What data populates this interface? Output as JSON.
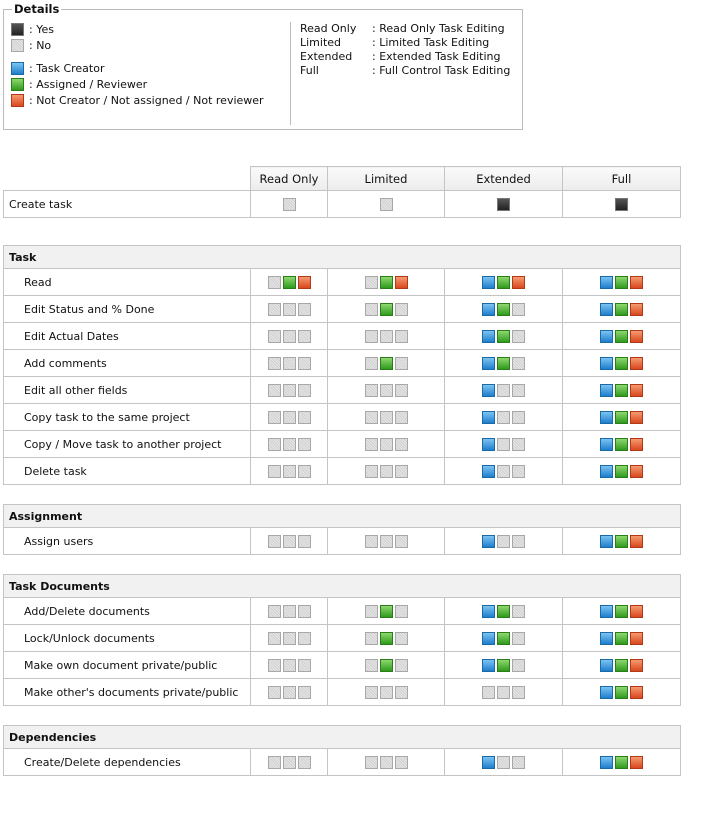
{
  "details": {
    "title": "Details",
    "yes": ": Yes",
    "no": ": No",
    "creator": ": Task Creator",
    "assigned": ": Assigned / Reviewer",
    "other": ": Not Creator / Not assigned / Not reviewer",
    "levels": [
      {
        "name": "Read Only",
        "desc": ": Read Only Task Editing"
      },
      {
        "name": "Limited",
        "desc": ": Limited Task Editing"
      },
      {
        "name": "Extended",
        "desc": ": Extended Task Editing"
      },
      {
        "name": "Full",
        "desc": ": Full Control Task Editing"
      }
    ]
  },
  "table": {
    "columns": [
      "Read Only",
      "Limited",
      "Extended",
      "Full"
    ],
    "create": {
      "label": "Create task",
      "cells": [
        false,
        false,
        true,
        true
      ]
    },
    "sections": [
      {
        "title": "Task",
        "rows": [
          {
            "label": "Read",
            "cells": [
              [
                false,
                true,
                true
              ],
              [
                false,
                true,
                true
              ],
              [
                true,
                true,
                true
              ],
              [
                true,
                true,
                true
              ]
            ]
          },
          {
            "label": "Edit Status and % Done",
            "cells": [
              [
                false,
                false,
                false
              ],
              [
                false,
                true,
                false
              ],
              [
                true,
                true,
                false
              ],
              [
                true,
                true,
                true
              ]
            ]
          },
          {
            "label": "Edit Actual Dates",
            "cells": [
              [
                false,
                false,
                false
              ],
              [
                false,
                false,
                false
              ],
              [
                true,
                true,
                false
              ],
              [
                true,
                true,
                true
              ]
            ]
          },
          {
            "label": "Add comments",
            "cells": [
              [
                false,
                false,
                false
              ],
              [
                false,
                true,
                false
              ],
              [
                true,
                true,
                false
              ],
              [
                true,
                true,
                true
              ]
            ]
          },
          {
            "label": "Edit all other fields",
            "cells": [
              [
                false,
                false,
                false
              ],
              [
                false,
                false,
                false
              ],
              [
                true,
                false,
                false
              ],
              [
                true,
                true,
                true
              ]
            ]
          },
          {
            "label": "Copy task to the same project",
            "cells": [
              [
                false,
                false,
                false
              ],
              [
                false,
                false,
                false
              ],
              [
                true,
                false,
                false
              ],
              [
                true,
                true,
                true
              ]
            ]
          },
          {
            "label": "Copy / Move task to another project",
            "cells": [
              [
                false,
                false,
                false
              ],
              [
                false,
                false,
                false
              ],
              [
                true,
                false,
                false
              ],
              [
                true,
                true,
                true
              ]
            ]
          },
          {
            "label": "Delete task",
            "cells": [
              [
                false,
                false,
                false
              ],
              [
                false,
                false,
                false
              ],
              [
                true,
                false,
                false
              ],
              [
                true,
                true,
                true
              ]
            ]
          }
        ]
      },
      {
        "title": "Assignment",
        "rows": [
          {
            "label": "Assign users",
            "cells": [
              [
                false,
                false,
                false
              ],
              [
                false,
                false,
                false
              ],
              [
                true,
                false,
                false
              ],
              [
                true,
                true,
                true
              ]
            ]
          }
        ]
      },
      {
        "title": "Task Documents",
        "rows": [
          {
            "label": "Add/Delete documents",
            "cells": [
              [
                false,
                false,
                false
              ],
              [
                false,
                true,
                false
              ],
              [
                true,
                true,
                false
              ],
              [
                true,
                true,
                true
              ]
            ]
          },
          {
            "label": "Lock/Unlock documents",
            "cells": [
              [
                false,
                false,
                false
              ],
              [
                false,
                true,
                false
              ],
              [
                true,
                true,
                false
              ],
              [
                true,
                true,
                true
              ]
            ]
          },
          {
            "label": "Make own document private/public",
            "cells": [
              [
                false,
                false,
                false
              ],
              [
                false,
                true,
                false
              ],
              [
                true,
                true,
                false
              ],
              [
                true,
                true,
                true
              ]
            ]
          },
          {
            "label": "Make other's documents private/public",
            "cells": [
              [
                false,
                false,
                false
              ],
              [
                false,
                false,
                false
              ],
              [
                false,
                false,
                false
              ],
              [
                true,
                true,
                true
              ]
            ]
          }
        ]
      },
      {
        "title": "Dependencies",
        "rows": [
          {
            "label": "Create/Delete dependencies",
            "cells": [
              [
                false,
                false,
                false
              ],
              [
                false,
                false,
                false
              ],
              [
                true,
                false,
                false
              ],
              [
                true,
                true,
                true
              ]
            ]
          }
        ]
      }
    ]
  }
}
